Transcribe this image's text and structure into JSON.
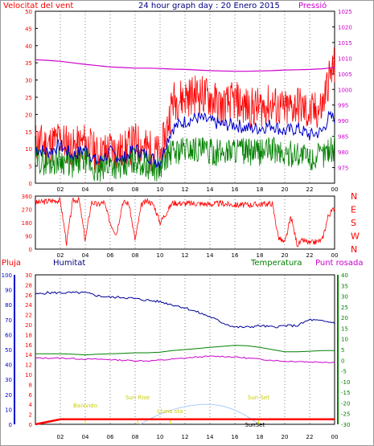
{
  "header": {
    "left_title": "Velocitat del vent",
    "center_title": "24 hour graph day : 20 Enero 2015",
    "right_title": "Pressió"
  },
  "colors": {
    "wind": "#ff0000",
    "wind_fill": "#ff0000",
    "gust": "#0000cc",
    "avg": "#008000",
    "pressure": "#cc00cc",
    "direction": "#ff0000",
    "humidity": "#000099",
    "temperature": "#008000",
    "dewpoint": "#cc00cc",
    "rain": "#ff0000",
    "solar": "#aaccff",
    "events": "#dddd00",
    "grid": "#000000",
    "plot_bg": "#ffffff"
  },
  "x_ticks": [
    "02",
    "04",
    "06",
    "08",
    "10",
    "12",
    "14",
    "16",
    "18",
    "20",
    "22",
    "00"
  ],
  "chart_data": [
    {
      "type": "line",
      "panel": "wind",
      "title": "24 hour graph day : 20 Enero 2015",
      "ylabel_left": "Velocitat del vent",
      "ylabel_right": "Pressió",
      "ylim_left": [
        0,
        50
      ],
      "ylim_right": [
        970,
        1025
      ],
      "left_ticks": [
        "0",
        "5",
        "10",
        "15",
        "20",
        "25",
        "30",
        "35",
        "40",
        "45",
        "50"
      ],
      "right_ticks": [
        "975",
        "980",
        "985",
        "990",
        "995",
        "1000",
        "1005",
        "1010",
        "1015",
        "1020",
        "1025"
      ],
      "x": [
        0,
        1,
        2,
        3,
        4,
        5,
        6,
        7,
        8,
        9,
        10,
        10.5,
        11,
        12,
        13,
        14,
        15,
        16,
        17,
        18,
        19,
        20,
        21,
        22,
        23,
        23.5,
        24
      ],
      "series": [
        {
          "name": "gust",
          "axis": "left",
          "values": [
            12,
            11,
            13,
            10,
            12,
            8,
            10,
            9,
            12,
            10,
            8,
            15,
            24,
            25,
            26,
            25,
            22,
            24,
            22,
            22,
            23,
            21,
            23,
            20,
            22,
            30,
            34
          ]
        },
        {
          "name": "speed",
          "axis": "left",
          "values": [
            10,
            9,
            11,
            8,
            10,
            6,
            9,
            7,
            10,
            8,
            6,
            12,
            16,
            18,
            19,
            18,
            17,
            17,
            16,
            16,
            17,
            15,
            16,
            14,
            15,
            19,
            19
          ]
        },
        {
          "name": "average",
          "axis": "left",
          "values": [
            7,
            6,
            7,
            5,
            7,
            3,
            6,
            4,
            7,
            5,
            4,
            8,
            9,
            10,
            10,
            9,
            9,
            10,
            9,
            9,
            10,
            8,
            9,
            7,
            8,
            10,
            10
          ]
        },
        {
          "name": "pressure",
          "axis": "right",
          "values": [
            1009.5,
            1009.3,
            1009,
            1008.5,
            1008,
            1007.6,
            1007.2,
            1007,
            1006.8,
            1006.8,
            1006.7,
            1006.6,
            1006.5,
            1006.4,
            1006.2,
            1006,
            1005.9,
            1005.8,
            1005.8,
            1005.9,
            1006,
            1006.2,
            1006.3,
            1006.4,
            1006.6,
            1006.8,
            1007
          ]
        }
      ]
    },
    {
      "type": "scatter",
      "panel": "direction",
      "ylim": [
        0,
        360
      ],
      "left_ticks": [
        "0",
        "90",
        "180",
        "270",
        "360"
      ],
      "right_labels": [
        "N",
        "W",
        "S",
        "E",
        "N"
      ],
      "x": [
        0,
        0.5,
        1,
        1.5,
        2,
        2.5,
        3,
        3.5,
        4,
        4.5,
        5,
        5.5,
        6,
        6.5,
        7,
        7.5,
        8,
        8.5,
        9,
        9.5,
        10,
        11,
        12,
        13,
        14,
        15,
        16,
        17,
        18,
        19,
        19.5,
        20,
        20.5,
        21,
        21.5,
        22,
        22.5,
        23,
        23.5,
        24
      ],
      "series": [
        {
          "name": "direction",
          "values": [
            315,
            320,
            325,
            330,
            330,
            40,
            330,
            335,
            60,
            320,
            300,
            320,
            180,
            100,
            320,
            310,
            60,
            300,
            330,
            300,
            180,
            315,
            310,
            310,
            305,
            310,
            300,
            300,
            305,
            310,
            80,
            40,
            220,
            30,
            60,
            40,
            50,
            60,
            230,
            280
          ]
        }
      ]
    },
    {
      "type": "line",
      "panel": "humidity",
      "headers": [
        "Pluja",
        "Humitat",
        "Temperatura",
        "Punt rosada"
      ],
      "ylim_humidity": [
        0,
        100
      ],
      "ylim_rain": [
        0,
        30
      ],
      "ylim_temp": [
        -30,
        40
      ],
      "humidity_ticks": [
        "0",
        "10",
        "20",
        "30",
        "40",
        "50",
        "60",
        "70",
        "80",
        "90",
        "100"
      ],
      "rain_ticks": [
        "0",
        "2",
        "4",
        "6",
        "8",
        "10",
        "12",
        "14",
        "16",
        "18",
        "20",
        "22",
        "24",
        "26",
        "28",
        "30"
      ],
      "temp_ticks": [
        "-30",
        "-25",
        "-20",
        "-15",
        "-10",
        "-5",
        "0",
        "5",
        "10",
        "15",
        "20",
        "25",
        "30",
        "35",
        "40"
      ],
      "x": [
        0,
        1,
        2,
        3,
        4,
        5,
        6,
        7,
        8,
        9,
        10,
        11,
        12,
        13,
        14,
        15,
        16,
        17,
        18,
        19,
        20,
        21,
        22,
        23,
        24
      ],
      "series": [
        {
          "name": "humidity",
          "axis": "humidity",
          "values": [
            87,
            88,
            88,
            88,
            88,
            86,
            85,
            85,
            84,
            83,
            82,
            80,
            78,
            75,
            72,
            68,
            65,
            65,
            66,
            65,
            66,
            66,
            70,
            69,
            68
          ]
        },
        {
          "name": "temperature",
          "axis": "temp",
          "values": [
            3,
            3,
            3,
            2.8,
            2.5,
            2.8,
            3,
            3.2,
            3.5,
            3.5,
            3.8,
            4.5,
            5,
            5.5,
            6,
            6.5,
            7,
            6.8,
            6,
            5,
            4,
            4,
            4.2,
            4.5,
            4.5
          ]
        },
        {
          "name": "dewpoint",
          "axis": "temp",
          "values": [
            1,
            1,
            1,
            0.8,
            0.5,
            0.5,
            0.3,
            0,
            -0.2,
            -0.3,
            0,
            0.5,
            1,
            1.5,
            1.8,
            1.8,
            1.5,
            1,
            0.5,
            0,
            -0.5,
            -0.5,
            -0.8,
            -0.8,
            -1
          ]
        },
        {
          "name": "rain",
          "axis": "rain",
          "values": [
            0,
            0.5,
            1,
            1,
            1,
            1,
            1,
            1,
            1,
            1,
            1,
            1,
            1,
            1,
            1,
            1,
            1,
            1,
            1,
            1,
            1,
            1,
            1,
            1,
            1
          ]
        }
      ],
      "solar_curve": {
        "start": 8.4,
        "peak": 13.8,
        "end": 17.9,
        "peak_value": 4
      },
      "events": [
        {
          "label": "Baixvido",
          "x": 4
        },
        {
          "label": "Sun Rise",
          "x": 8.2
        },
        {
          "label": "Lluna sta",
          "x": 10.8
        },
        {
          "label": "Sun Set",
          "x": 17.9
        },
        {
          "label": "SunSet",
          "x": 17.6
        }
      ]
    }
  ]
}
